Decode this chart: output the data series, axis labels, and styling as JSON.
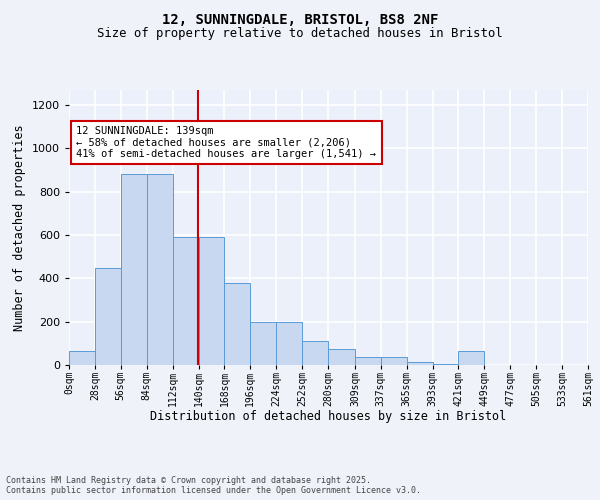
{
  "title_line1": "12, SUNNINGDALE, BRISTOL, BS8 2NF",
  "title_line2": "Size of property relative to detached houses in Bristol",
  "xlabel": "Distribution of detached houses by size in Bristol",
  "ylabel": "Number of detached properties",
  "bar_color": "#c8d8f0",
  "bar_edge_color": "#5b9bd5",
  "background_color": "#ecf0fa",
  "grid_color": "#ffffff",
  "vline_color": "#cc0000",
  "property_size": 139,
  "bin_edges": [
    0,
    28,
    56,
    84,
    112,
    140,
    168,
    196,
    224,
    252,
    280,
    309,
    337,
    365,
    393,
    421,
    449,
    477,
    505,
    533,
    561
  ],
  "bar_heights": [
    65,
    450,
    880,
    880,
    590,
    590,
    380,
    200,
    200,
    110,
    75,
    35,
    35,
    12,
    5,
    65,
    0,
    0,
    0,
    0
  ],
  "xtick_labels": [
    "0sqm",
    "28sqm",
    "56sqm",
    "84sqm",
    "112sqm",
    "140sqm",
    "168sqm",
    "196sqm",
    "224sqm",
    "252sqm",
    "280sqm",
    "309sqm",
    "337sqm",
    "365sqm",
    "393sqm",
    "421sqm",
    "449sqm",
    "477sqm",
    "505sqm",
    "533sqm",
    "561sqm"
  ],
  "annotation_text": "12 SUNNINGDALE: 139sqm\n← 58% of detached houses are smaller (2,206)\n41% of semi-detached houses are larger (1,541) →",
  "ylim": [
    0,
    1270
  ],
  "yticks": [
    0,
    200,
    400,
    600,
    800,
    1000,
    1200
  ],
  "footnote": "Contains HM Land Registry data © Crown copyright and database right 2025.\nContains public sector information licensed under the Open Government Licence v3.0."
}
